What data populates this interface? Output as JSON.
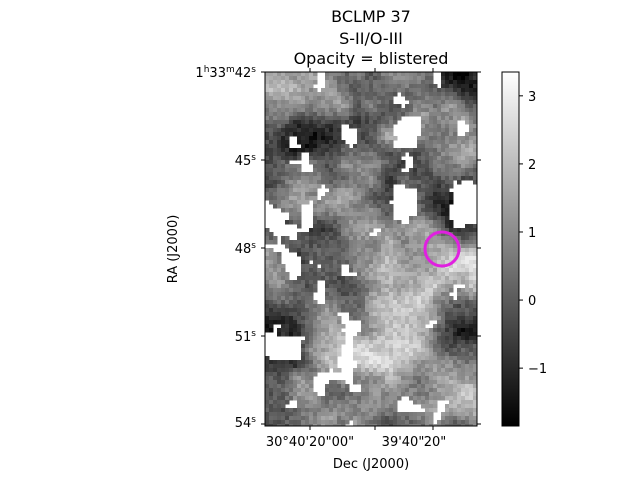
{
  "chart_data": {
    "type": "heatmap",
    "title": [
      "BCLMP 37",
      "S-II/O-III",
      "Opacity = blistered"
    ],
    "xlabel": "Dec (J2000)",
    "ylabel": "RA (J2000)",
    "x_ticks": [
      "30°40'20\"00\"",
      "39'40\"",
      "20\""
    ],
    "y_ticks": [
      {
        "main": "1",
        "sup1": "h",
        "mid": "33",
        "sup2": "m",
        "end": "42",
        "sup3": "s"
      },
      {
        "main": "45",
        "sup": "s"
      },
      {
        "main": "48",
        "sup": "s"
      },
      {
        "main": "51",
        "sup": "s"
      },
      {
        "main": "54",
        "sup": "s"
      }
    ],
    "colorbar": {
      "colormap": "gray",
      "vmin": -1.85,
      "vmax": 3.35,
      "ticks": [
        "3",
        "2",
        "1",
        "0",
        "−1"
      ],
      "tick_values": [
        3,
        2,
        1,
        0,
        -1
      ]
    },
    "marker": {
      "shape": "circle",
      "color": "#e020e0"
    },
    "colors": {
      "nan": "#ffffff",
      "marker": "#e020e0"
    }
  }
}
